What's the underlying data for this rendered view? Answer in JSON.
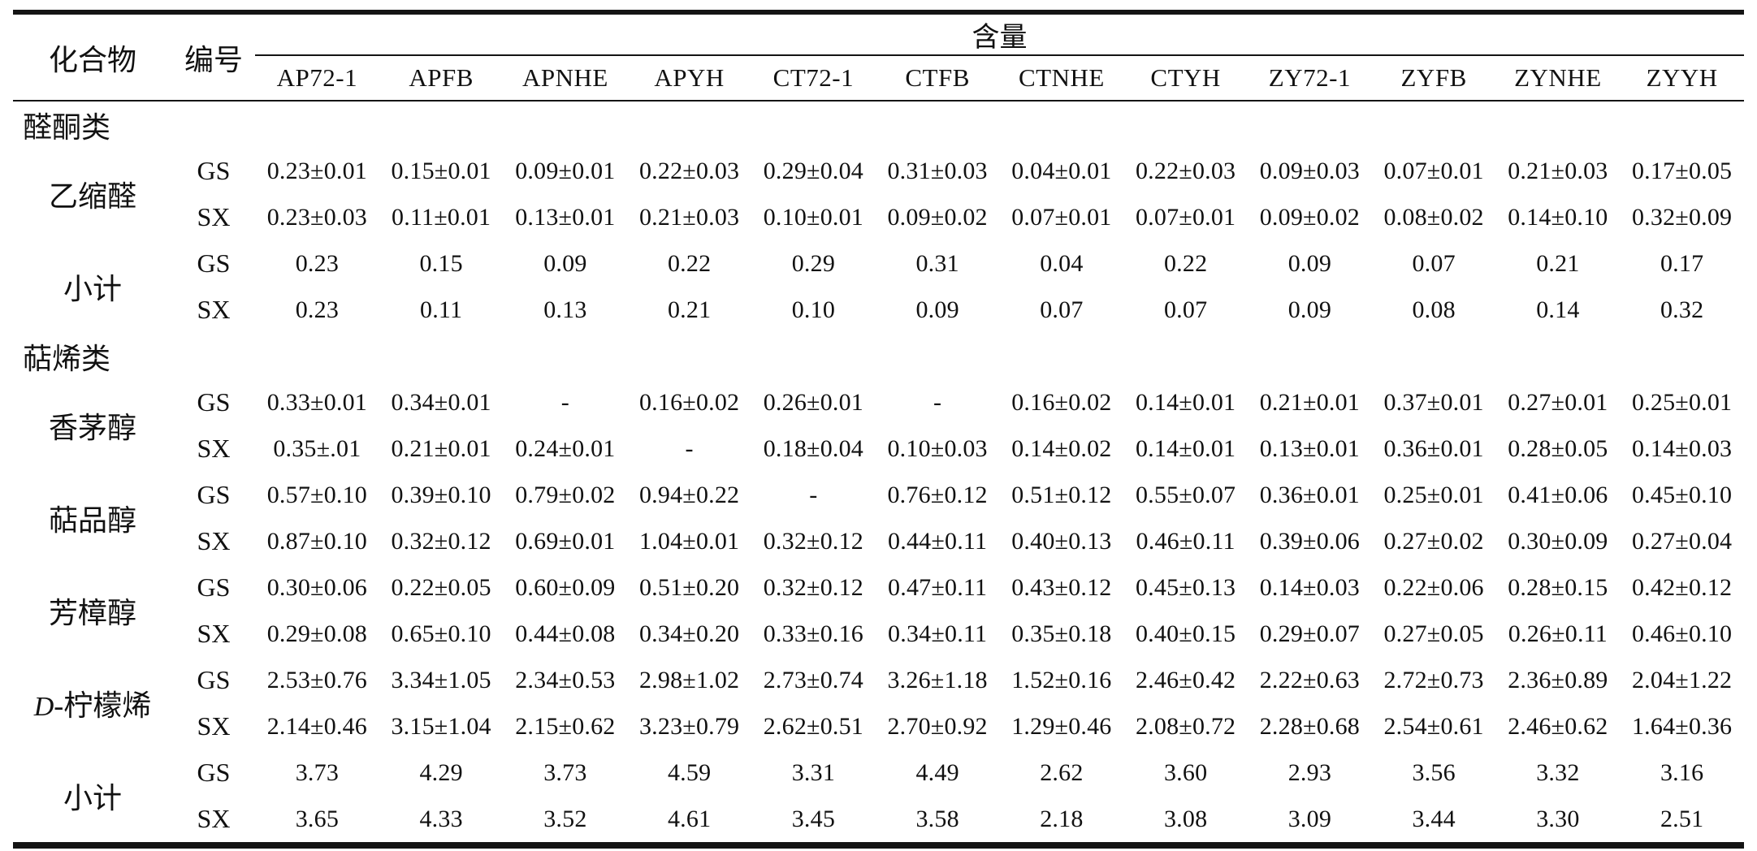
{
  "table": {
    "header": {
      "compound": "化合物",
      "code": "编号",
      "content_group": "含量",
      "samples": [
        "AP72-1",
        "APFB",
        "APNHE",
        "APYH",
        "CT72-1",
        "CTFB",
        "CTNHE",
        "CTYH",
        "ZY72-1",
        "ZYFB",
        "ZYNHE",
        "ZYYH"
      ]
    },
    "rows": [
      {
        "type": "section",
        "label": "醛酮类"
      },
      {
        "type": "compound",
        "label_parts": [
          {
            "text": "乙缩醛",
            "italic": false
          }
        ],
        "sub": [
          {
            "code": "GS",
            "values": [
              "0.23±0.01",
              "0.15±0.01",
              "0.09±0.01",
              "0.22±0.03",
              "0.29±0.04",
              "0.31±0.03",
              "0.04±0.01",
              "0.22±0.03",
              "0.09±0.03",
              "0.07±0.01",
              "0.21±0.03",
              "0.17±0.05"
            ]
          },
          {
            "code": "SX",
            "values": [
              "0.23±0.03",
              "0.11±0.01",
              "0.13±0.01",
              "0.21±0.03",
              "0.10±0.01",
              "0.09±0.02",
              "0.07±0.01",
              "0.07±0.01",
              "0.09±0.02",
              "0.08±0.02",
              "0.14±0.10",
              "0.32±0.09"
            ]
          }
        ]
      },
      {
        "type": "compound",
        "label_parts": [
          {
            "text": "小计",
            "italic": false
          }
        ],
        "sub": [
          {
            "code": "GS",
            "values": [
              "0.23",
              "0.15",
              "0.09",
              "0.22",
              "0.29",
              "0.31",
              "0.04",
              "0.22",
              "0.09",
              "0.07",
              "0.21",
              "0.17"
            ]
          },
          {
            "code": "SX",
            "values": [
              "0.23",
              "0.11",
              "0.13",
              "0.21",
              "0.10",
              "0.09",
              "0.07",
              "0.07",
              "0.09",
              "0.08",
              "0.14",
              "0.32"
            ]
          }
        ]
      },
      {
        "type": "section",
        "label": "萜烯类"
      },
      {
        "type": "compound",
        "label_parts": [
          {
            "text": "香茅醇",
            "italic": false
          }
        ],
        "sub": [
          {
            "code": "GS",
            "values": [
              "0.33±0.01",
              "0.34±0.01",
              "-",
              "0.16±0.02",
              "0.26±0.01",
              "-",
              "0.16±0.02",
              "0.14±0.01",
              "0.21±0.01",
              "0.37±0.01",
              "0.27±0.01",
              "0.25±0.01"
            ]
          },
          {
            "code": "SX",
            "values": [
              "0.35±.01",
              "0.21±0.01",
              "0.24±0.01",
              "-",
              "0.18±0.04",
              "0.10±0.03",
              "0.14±0.02",
              "0.14±0.01",
              "0.13±0.01",
              "0.36±0.01",
              "0.28±0.05",
              "0.14±0.03"
            ]
          }
        ]
      },
      {
        "type": "compound",
        "label_parts": [
          {
            "text": "萜品醇",
            "italic": false
          }
        ],
        "sub": [
          {
            "code": "GS",
            "values": [
              "0.57±0.10",
              "0.39±0.10",
              "0.79±0.02",
              "0.94±0.22",
              "-",
              "0.76±0.12",
              "0.51±0.12",
              "0.55±0.07",
              "0.36±0.01",
              "0.25±0.01",
              "0.41±0.06",
              "0.45±0.10"
            ]
          },
          {
            "code": "SX",
            "values": [
              "0.87±0.10",
              "0.32±0.12",
              "0.69±0.01",
              "1.04±0.01",
              "0.32±0.12",
              "0.44±0.11",
              "0.40±0.13",
              "0.46±0.11",
              "0.39±0.06",
              "0.27±0.02",
              "0.30±0.09",
              "0.27±0.04"
            ]
          }
        ]
      },
      {
        "type": "compound",
        "label_parts": [
          {
            "text": "芳樟醇",
            "italic": false
          }
        ],
        "sub": [
          {
            "code": "GS",
            "values": [
              "0.30±0.06",
              "0.22±0.05",
              "0.60±0.09",
              "0.51±0.20",
              "0.32±0.12",
              "0.47±0.11",
              "0.43±0.12",
              "0.45±0.13",
              "0.14±0.03",
              "0.22±0.06",
              "0.28±0.15",
              "0.42±0.12"
            ]
          },
          {
            "code": "SX",
            "values": [
              "0.29±0.08",
              "0.65±0.10",
              "0.44±0.08",
              "0.34±0.20",
              "0.33±0.16",
              "0.34±0.11",
              "0.35±0.18",
              "0.40±0.15",
              "0.29±0.07",
              "0.27±0.05",
              "0.26±0.11",
              "0.46±0.10"
            ]
          }
        ]
      },
      {
        "type": "compound",
        "label_parts": [
          {
            "text": "D",
            "italic": true
          },
          {
            "text": "-柠檬烯",
            "italic": false
          }
        ],
        "sub": [
          {
            "code": "GS",
            "values": [
              "2.53±0.76",
              "3.34±1.05",
              "2.34±0.53",
              "2.98±1.02",
              "2.73±0.74",
              "3.26±1.18",
              "1.52±0.16",
              "2.46±0.42",
              "2.22±0.63",
              "2.72±0.73",
              "2.36±0.89",
              "2.04±1.22"
            ]
          },
          {
            "code": "SX",
            "values": [
              "2.14±0.46",
              "3.15±1.04",
              "2.15±0.62",
              "3.23±0.79",
              "2.62±0.51",
              "2.70±0.92",
              "1.29±0.46",
              "2.08±0.72",
              "2.28±0.68",
              "2.54±0.61",
              "2.46±0.62",
              "1.64±0.36"
            ]
          }
        ]
      },
      {
        "type": "compound",
        "label_parts": [
          {
            "text": "小计",
            "italic": false
          }
        ],
        "sub": [
          {
            "code": "GS",
            "values": [
              "3.73",
              "4.29",
              "3.73",
              "4.59",
              "3.31",
              "4.49",
              "2.62",
              "3.60",
              "2.93",
              "3.56",
              "3.32",
              "3.16"
            ]
          },
          {
            "code": "SX",
            "values": [
              "3.65",
              "4.33",
              "3.52",
              "4.61",
              "3.45",
              "3.58",
              "2.18",
              "3.08",
              "3.09",
              "3.44",
              "3.30",
              "2.51"
            ]
          }
        ]
      }
    ]
  }
}
